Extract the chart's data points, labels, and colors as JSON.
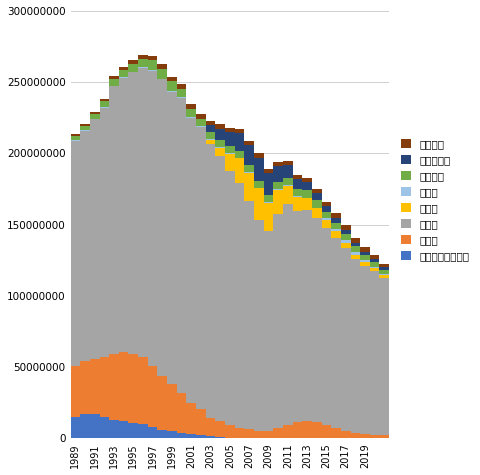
{
  "years": [
    1989,
    1990,
    1991,
    1992,
    1993,
    1994,
    1995,
    1996,
    1997,
    1998,
    1999,
    2000,
    2001,
    2002,
    2003,
    2004,
    2005,
    2006,
    2007,
    2008,
    2009,
    2010,
    2011,
    2012,
    2013,
    2014,
    2015,
    2016,
    2017,
    2018,
    2019,
    2020,
    2021
  ],
  "xtick_years": [
    1989,
    1991,
    1993,
    1995,
    1997,
    1999,
    2001,
    2003,
    2005,
    2007,
    2009,
    2011,
    2013,
    2015,
    2017,
    2019
  ],
  "series": {
    "東・中央アジア計": [
      15000000,
      17000000,
      17000000,
      15000000,
      13000000,
      12000000,
      11000000,
      10000000,
      8000000,
      6000000,
      5000000,
      4000000,
      3000000,
      2500000,
      1500000,
      1000000,
      500000,
      500000,
      500000,
      500000,
      500000,
      500000,
      500000,
      500000,
      500000,
      500000,
      500000,
      500000,
      500000,
      500000,
      500000,
      500000,
      500000
    ],
    "南方計": [
      36000000,
      37000000,
      39000000,
      42000000,
      46000000,
      49000000,
      48000000,
      47000000,
      43000000,
      38000000,
      33000000,
      28000000,
      22000000,
      18000000,
      13000000,
      11000000,
      9000000,
      7000000,
      6000000,
      5000000,
      5000000,
      7000000,
      9000000,
      11000000,
      12000000,
      11000000,
      9000000,
      7000000,
      5000000,
      3500000,
      2500000,
      2000000,
      2000000
    ],
    "中東計": [
      158000000,
      162000000,
      168000000,
      175000000,
      188000000,
      192000000,
      198000000,
      203000000,
      207000000,
      208000000,
      205000000,
      207000000,
      200000000,
      198000000,
      192000000,
      186000000,
      178000000,
      172000000,
      160000000,
      148000000,
      140000000,
      150000000,
      155000000,
      148000000,
      148000000,
      143000000,
      138000000,
      133000000,
      128000000,
      122000000,
      118000000,
      115000000,
      110000000
    ],
    "欧州計": [
      0,
      0,
      0,
      0,
      0,
      0,
      0,
      0,
      0,
      0,
      0,
      0,
      0,
      0,
      3000000,
      6000000,
      12000000,
      17000000,
      20000000,
      22000000,
      20000000,
      17000000,
      13000000,
      10000000,
      8000000,
      7000000,
      6000000,
      5000000,
      4000000,
      3000000,
      2500000,
      2000000,
      2000000
    ],
    "北米計": [
      500000,
      500000,
      500000,
      500000,
      500000,
      500000,
      500000,
      500000,
      500000,
      500000,
      500000,
      500000,
      500000,
      500000,
      500000,
      500000,
      500000,
      500000,
      500000,
      500000,
      500000,
      500000,
      500000,
      500000,
      500000,
      500000,
      1000000,
      1500000,
      2000000,
      2000000,
      1500000,
      1000000,
      1000000
    ],
    "中南米計": [
      3000000,
      3000000,
      3500000,
      4000000,
      5000000,
      5000000,
      5500000,
      6000000,
      7000000,
      7000000,
      7000000,
      6000000,
      6000000,
      5500000,
      5000000,
      5000000,
      5000000,
      5000000,
      5000000,
      5000000,
      5000000,
      5000000,
      5000000,
      5000000,
      5000000,
      5000000,
      4500000,
      4000000,
      4000000,
      4000000,
      4000000,
      3500000,
      3000000
    ],
    "アフリカ計": [
      0,
      0,
      0,
      0,
      0,
      0,
      0,
      0,
      0,
      0,
      0,
      0,
      0,
      0,
      5000000,
      8000000,
      10000000,
      12000000,
      14000000,
      16000000,
      15000000,
      11000000,
      9000000,
      7000000,
      6000000,
      5000000,
      4000000,
      4000000,
      3000000,
      2500000,
      2000000,
      2000000,
      2000000
    ],
    "大洋州計": [
      1000000,
      1000000,
      1000000,
      1500000,
      2000000,
      2000000,
      2500000,
      2500000,
      3000000,
      3000000,
      3000000,
      3000000,
      3000000,
      3000000,
      3000000,
      3000000,
      3000000,
      3000000,
      3000000,
      3000000,
      3000000,
      3000000,
      3000000,
      3000000,
      3000000,
      3000000,
      3000000,
      3000000,
      3000000,
      3000000,
      3000000,
      2500000,
      2000000
    ]
  },
  "colors": {
    "東・中央アジア計": "#4472C4",
    "南方計": "#ED7D31",
    "中東計": "#A5A5A5",
    "欧州計": "#FFC000",
    "北米計": "#9DC3E6",
    "中南米計": "#70AD47",
    "アフリカ計": "#264478",
    "大洋州計": "#843C0C"
  },
  "ylim": [
    0,
    300000000
  ],
  "yticks": [
    0,
    50000000,
    100000000,
    150000000,
    200000000,
    250000000,
    300000000
  ],
  "background_color": "#FFFFFF",
  "grid_color": "#D0D0D0"
}
